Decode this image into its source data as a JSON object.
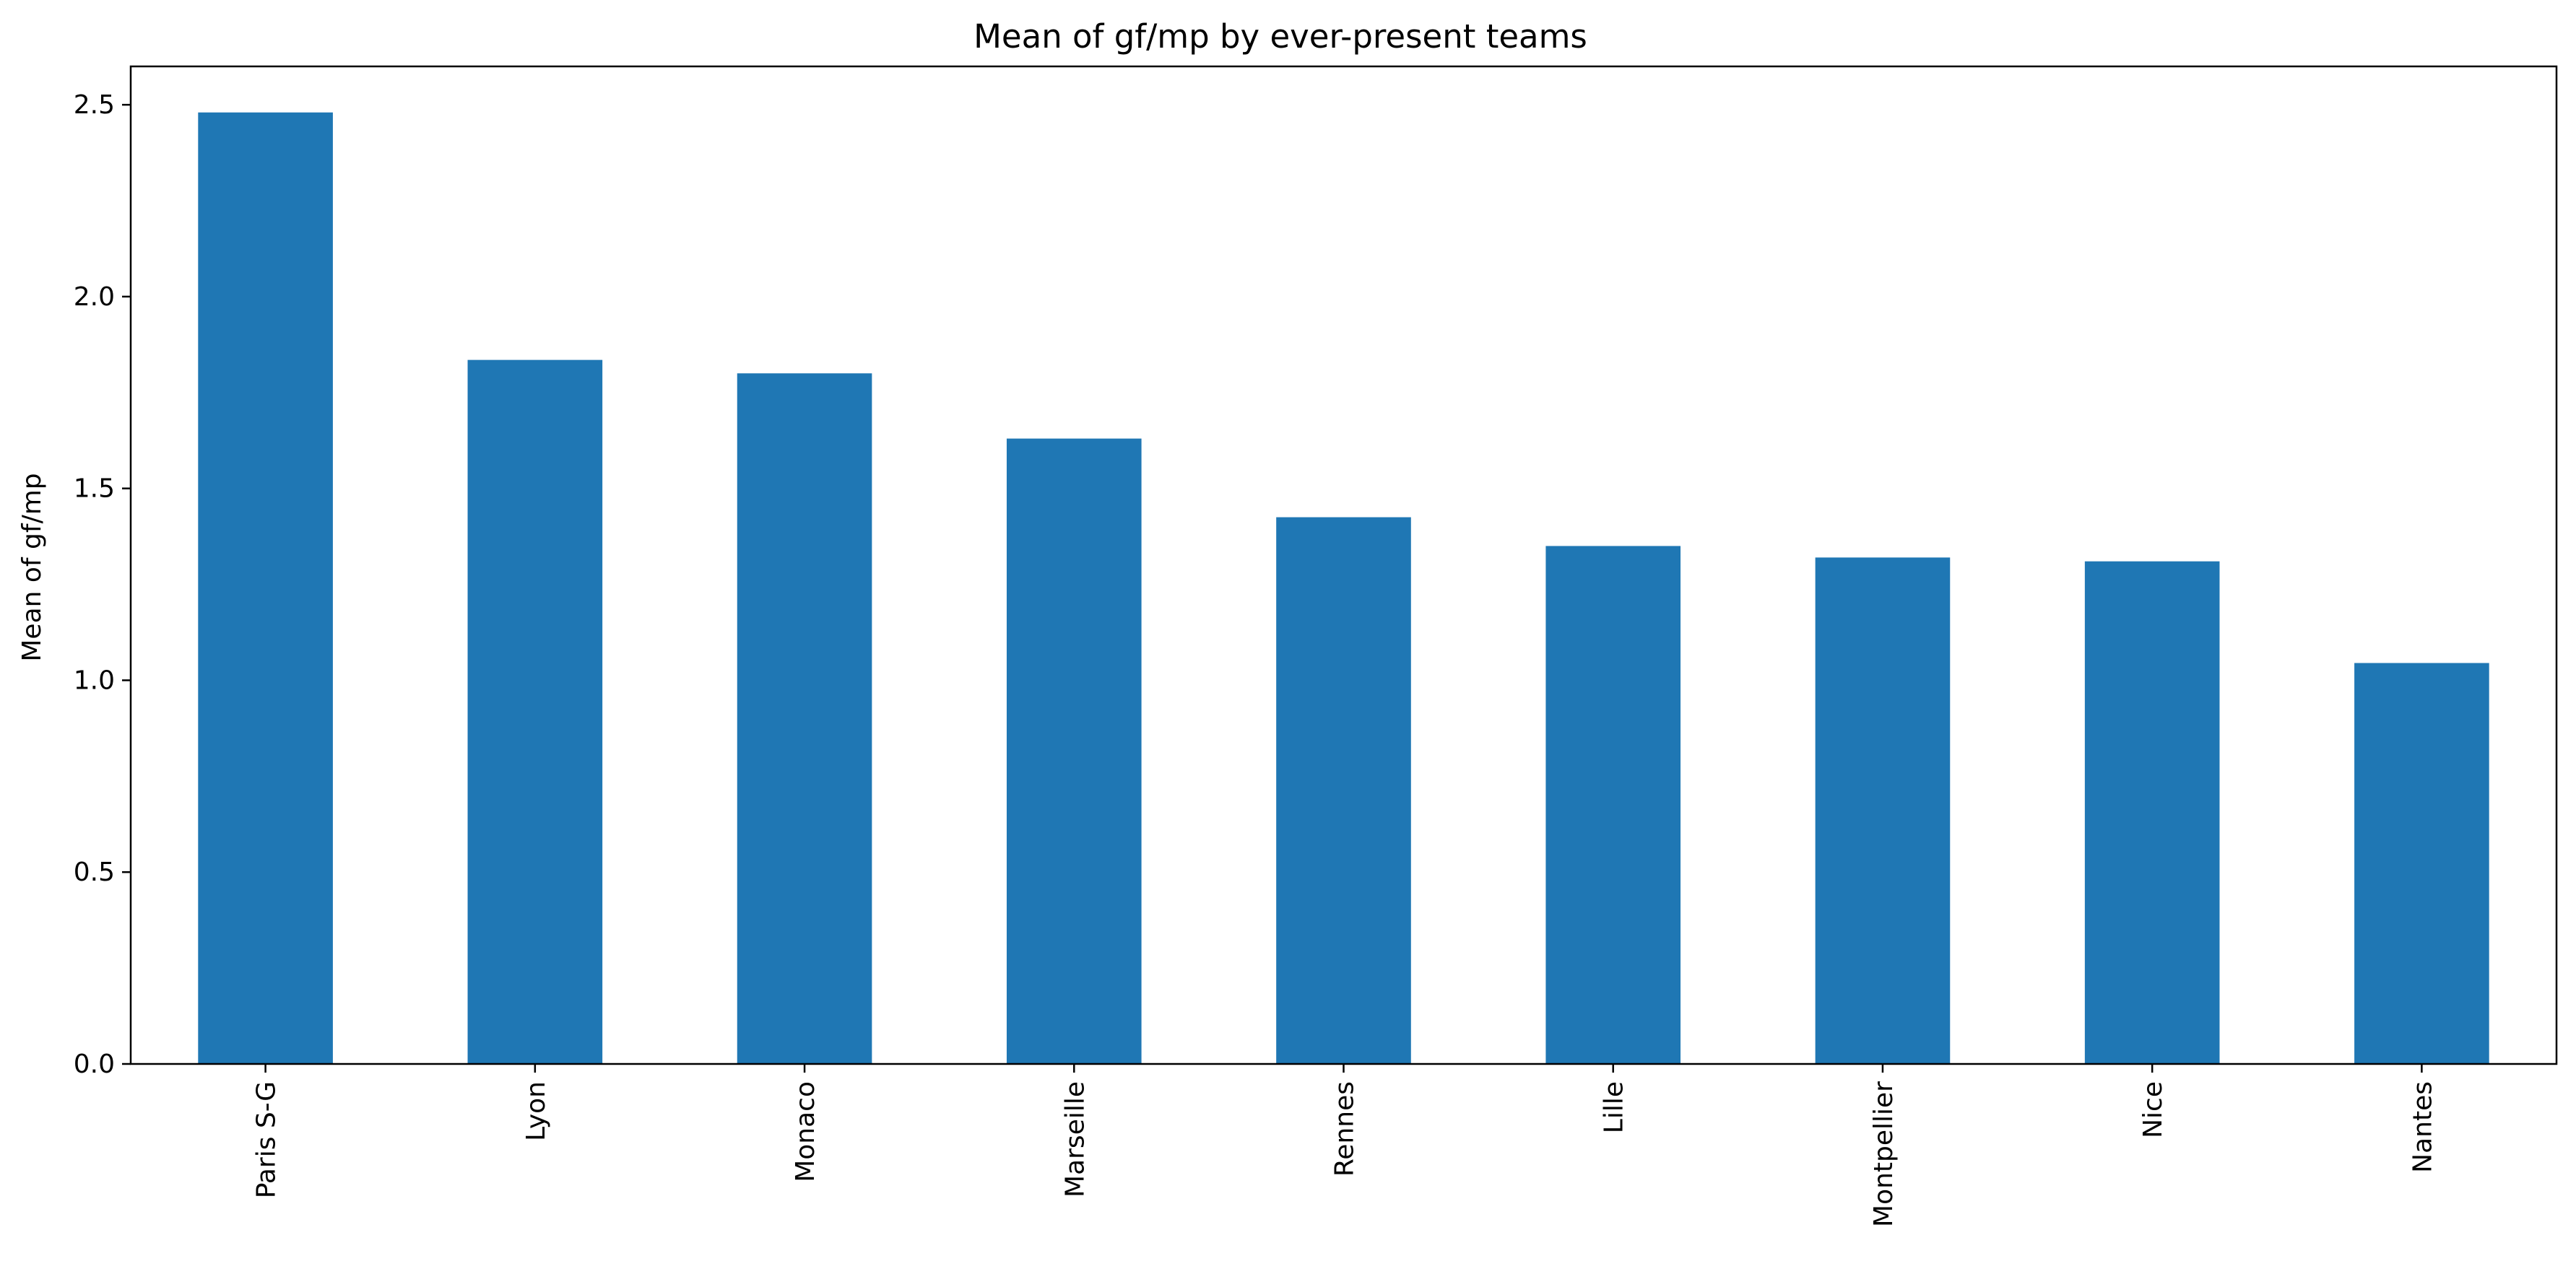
{
  "chart_data": {
    "type": "bar",
    "title": "Mean of gf/mp by ever-present teams",
    "xlabel": "",
    "ylabel": "Mean of gf/mp",
    "categories": [
      "Paris S-G",
      "Lyon",
      "Monaco",
      "Marseille",
      "Rennes",
      "Lille",
      "Montpellier",
      "Nice",
      "Nantes"
    ],
    "values": [
      2.48,
      1.835,
      1.8,
      1.63,
      1.425,
      1.35,
      1.32,
      1.31,
      1.045
    ],
    "ylim": [
      0,
      2.6
    ],
    "yticks": [
      "0.0",
      "0.5",
      "1.0",
      "1.5",
      "2.0",
      "2.5"
    ],
    "bar_color": "#1f77b4",
    "grid": false,
    "legend": "none"
  }
}
